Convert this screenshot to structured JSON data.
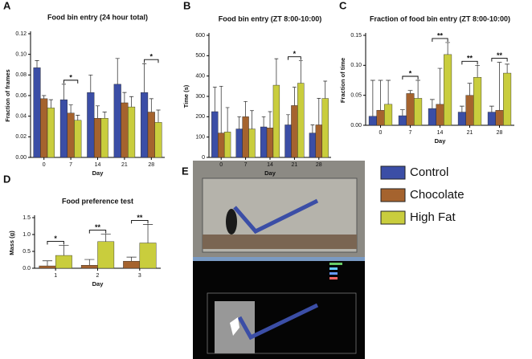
{
  "panel_labels": [
    "A",
    "B",
    "C",
    "D",
    "E"
  ],
  "chart_data": [
    {
      "type": "bar",
      "title": "Food bin entry (24 hour total)",
      "x_label": "Day",
      "y_label": "Fraction of frames",
      "categories": [
        "0",
        "7",
        "14",
        "21",
        "28"
      ],
      "ylim": [
        0,
        0.12
      ],
      "yticks": [
        {
          "value": 0,
          "label": "0.00"
        },
        {
          "value": 0.02,
          "label": "0.02"
        },
        {
          "value": 0.04,
          "label": "0.04"
        },
        {
          "value": 0.06,
          "label": "0.06"
        },
        {
          "value": 0.08,
          "label": "0.08"
        },
        {
          "value": 0.1,
          "label": "0.10"
        },
        {
          "value": 0.12,
          "label": "0.12"
        }
      ],
      "series": [
        {
          "name": "Control",
          "color": "#3b4ea6",
          "values": [
            0.087,
            0.056,
            0.063,
            0.071,
            0.063
          ],
          "errors": [
            0.007,
            0.015,
            0.017,
            0.025,
            0.028
          ]
        },
        {
          "name": "Chocolate",
          "color": "#a5632e",
          "values": [
            0.057,
            0.043,
            0.038,
            0.053,
            0.044
          ],
          "errors": [
            0.003,
            0.008,
            0.012,
            0.01,
            0.013
          ]
        },
        {
          "name": "High Fat",
          "color": "#c9cd3d",
          "values": [
            0.048,
            0.036,
            0.038,
            0.049,
            0.034
          ],
          "errors": [
            0.008,
            0.005,
            0.006,
            0.01,
            0.012
          ]
        }
      ],
      "annotations": [
        {
          "text": "*",
          "x": "7"
        },
        {
          "text": "*",
          "x": "28"
        }
      ]
    },
    {
      "type": "bar",
      "title": "Food bin entry (ZT 8:00-10:00)",
      "x_label": "Day",
      "y_label": "Time (s)",
      "categories": [
        "0",
        "7",
        "14",
        "21",
        "28"
      ],
      "ylim": [
        0,
        600
      ],
      "yticks": [
        0,
        100,
        200,
        300,
        400,
        500,
        600
      ],
      "series": [
        {
          "name": "Control",
          "color": "#3b4ea6",
          "values": [
            225,
            140,
            150,
            160,
            120
          ],
          "errors": [
            120,
            60,
            50,
            50,
            40
          ]
        },
        {
          "name": "Chocolate",
          "color": "#a5632e",
          "values": [
            120,
            200,
            145,
            255,
            160
          ],
          "errors": [
            230,
            75,
            80,
            90,
            130
          ]
        },
        {
          "name": "High Fat",
          "color": "#c9cd3d",
          "values": [
            125,
            140,
            355,
            365,
            290
          ],
          "errors": [
            120,
            90,
            130,
            110,
            85
          ]
        }
      ],
      "annotations": [
        {
          "text": "*",
          "x": "21"
        }
      ]
    },
    {
      "type": "bar",
      "title": "Fraction of food bin entry (ZT 8:00-10:00)",
      "x_label": "Day",
      "y_label": "Fraction of time",
      "categories": [
        "0",
        "7",
        "14",
        "21",
        "28"
      ],
      "ylim": [
        0,
        0.15
      ],
      "yticks": [
        {
          "value": 0,
          "label": "0.00"
        },
        {
          "value": 0.05,
          "label": "0.05"
        },
        {
          "value": 0.1,
          "label": "0.10"
        },
        {
          "value": 0.15,
          "label": "0.15"
        }
      ],
      "series": [
        {
          "name": "Control",
          "color": "#3b4ea6",
          "values": [
            0.015,
            0.016,
            0.028,
            0.022,
            0.022
          ],
          "errors": [
            0.06,
            0.01,
            0.015,
            0.01,
            0.01
          ]
        },
        {
          "name": "Chocolate",
          "color": "#a5632e",
          "values": [
            0.025,
            0.053,
            0.035,
            0.05,
            0.025
          ],
          "errors": [
            0.05,
            0.005,
            0.06,
            0.02,
            0.08
          ]
        },
        {
          "name": "High Fat",
          "color": "#c9cd3d",
          "values": [
            0.035,
            0.045,
            0.118,
            0.08,
            0.087
          ],
          "errors": [
            0.04,
            0.03,
            0.02,
            0.02,
            0.015
          ]
        }
      ],
      "annotations": [
        {
          "text": "*",
          "x": "7"
        },
        {
          "text": "**",
          "x": "14"
        },
        {
          "text": "**",
          "x": "21"
        },
        {
          "text": "**",
          "x": "28"
        }
      ]
    },
    {
      "type": "bar",
      "title": "Food preference test",
      "x_label": "Day",
      "y_label": "Mass (g)",
      "categories": [
        "1",
        "2",
        "3"
      ],
      "ylim": [
        0,
        1.5
      ],
      "yticks": [
        {
          "value": 0,
          "label": "0.0"
        },
        {
          "value": 0.5,
          "label": "0.5"
        },
        {
          "value": 1,
          "label": "1.0"
        },
        {
          "value": 1.5,
          "label": "1.5"
        }
      ],
      "series": [
        {
          "name": "Chocolate",
          "color": "#a5632e",
          "values": [
            0.07,
            0.09,
            0.21
          ],
          "errors": [
            0.15,
            0.17,
            0.12
          ]
        },
        {
          "name": "High Fat",
          "color": "#c9cd3d",
          "values": [
            0.38,
            0.79,
            0.75
          ],
          "errors": [
            0.3,
            0.22,
            0.55
          ]
        }
      ],
      "annotations": [
        {
          "text": "*",
          "x": "1"
        },
        {
          "text": "**",
          "x": "2"
        },
        {
          "text": "**",
          "x": "3"
        }
      ]
    }
  ]
}
